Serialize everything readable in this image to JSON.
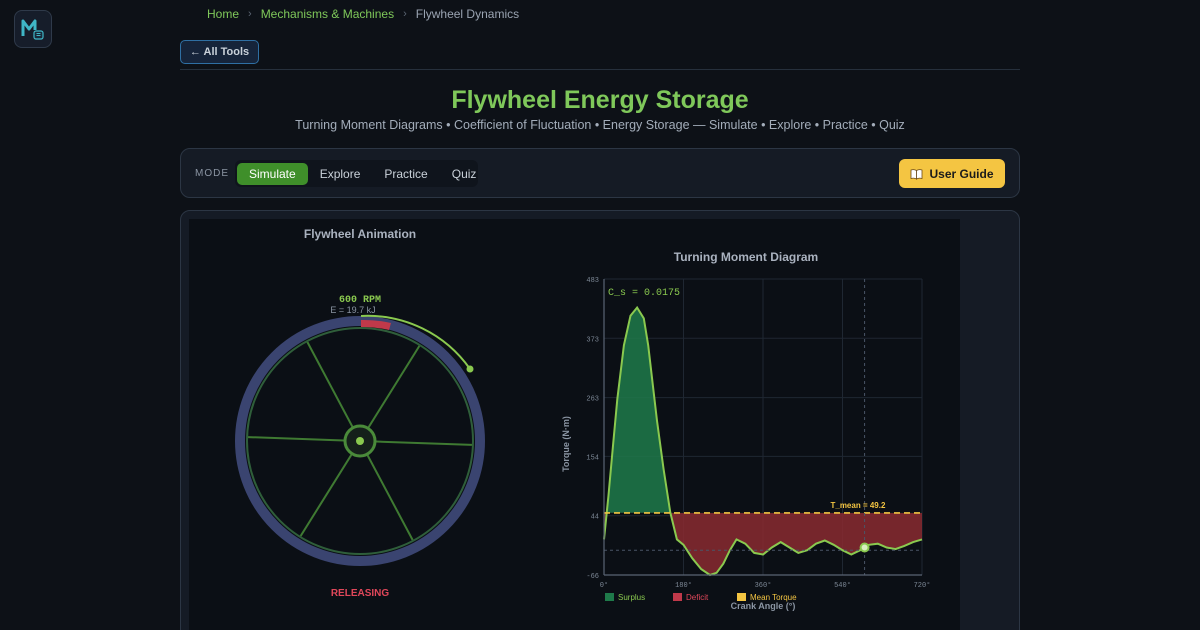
{
  "breadcrumb": {
    "items": [
      {
        "label": "Home"
      },
      {
        "label": "Mechanisms & Machines"
      },
      {
        "label": "Flywheel Dynamics"
      }
    ]
  },
  "header": {
    "back_label": "← All Tools",
    "title": "Flywheel Energy Storage",
    "subtitle": "Turning Moment Diagrams • Coefficient of Fluctuation • Energy Storage — Simulate • Explore • Practice • Quiz"
  },
  "mode_bar": {
    "label": "MODE",
    "tabs": [
      "Simulate",
      "Explore",
      "Practice",
      "Quiz"
    ],
    "active": "Simulate",
    "guide_label": "User Guide",
    "guide_icon": "book-icon"
  },
  "animation": {
    "title": "Flywheel Animation",
    "rpm_label": "600  RPM",
    "energy_label": "E = 19.7 kJ",
    "state_label": "RELEASING"
  },
  "chart_data": {
    "type": "area",
    "title": "Turning Moment Diagram",
    "xlabel": "Crank Angle (°)",
    "ylabel": "Torque (N·m)",
    "xlim": [
      0,
      720
    ],
    "ylim": [
      -66,
      483
    ],
    "x_ticks": [
      "0°",
      "180°",
      "360°",
      "540°",
      "720°"
    ],
    "y_ticks": [
      "483",
      "373",
      "263",
      "154",
      "44",
      "-66"
    ],
    "annotation_cs": "C_s = 0.0175",
    "mean_torque": 49.2,
    "mean_label": "T_mean = 49.2",
    "marker_angle": 590,
    "series": [
      {
        "name": "Torque",
        "x": [
          0,
          10,
          20,
          30,
          45,
          60,
          75,
          90,
          100,
          110,
          120,
          135,
          150,
          165,
          180,
          200,
          220,
          240,
          255,
          270,
          285,
          300,
          320,
          340,
          360,
          380,
          400,
          420,
          440,
          460,
          480,
          500,
          520,
          540,
          560,
          580,
          600,
          620,
          640,
          660,
          680,
          700,
          720
        ],
        "y": [
          0,
          80,
          170,
          260,
          360,
          415,
          430,
          410,
          360,
          290,
          220,
          130,
          50,
          0,
          -10,
          -35,
          -55,
          -66,
          -62,
          -45,
          -20,
          0,
          -8,
          -25,
          -28,
          -15,
          -5,
          -15,
          -25,
          -20,
          -8,
          -2,
          -10,
          -20,
          -28,
          -20,
          -10,
          -8,
          -15,
          -18,
          -12,
          -5,
          0
        ]
      }
    ],
    "legend": [
      "Surplus",
      "Deficit",
      "Mean Torque"
    ],
    "colors": {
      "surplus": "#1f7a4a",
      "deficit": "#8a2a30",
      "curve": "#8ac94f",
      "mean": "#f4c542",
      "accent": "#7fc85a"
    }
  }
}
